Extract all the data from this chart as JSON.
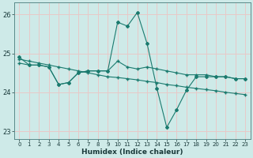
{
  "title": "",
  "xlabel": "Humidex (Indice chaleur)",
  "ylabel": "",
  "bg_color": "#ceeae8",
  "grid_color": "#e8c8c8",
  "line_color": "#1a7a6e",
  "xlim": [
    -0.5,
    23.5
  ],
  "ylim": [
    22.8,
    26.3
  ],
  "yticks": [
    23,
    24,
    25,
    26
  ],
  "xticks": [
    0,
    1,
    2,
    3,
    4,
    5,
    6,
    7,
    8,
    9,
    10,
    11,
    12,
    13,
    14,
    15,
    16,
    17,
    18,
    19,
    20,
    21,
    22,
    23
  ],
  "series1": [
    24.9,
    24.7,
    24.7,
    24.65,
    24.2,
    24.25,
    24.5,
    24.55,
    24.55,
    24.55,
    25.8,
    25.7,
    26.05,
    25.25,
    24.1,
    23.1,
    23.55,
    24.05,
    24.4,
    24.4,
    24.4,
    24.4,
    24.35,
    24.35
  ],
  "series2": [
    24.75,
    24.7,
    24.7,
    24.65,
    24.2,
    24.25,
    24.5,
    24.55,
    24.55,
    24.55,
    24.8,
    24.65,
    24.6,
    24.65,
    24.6,
    24.55,
    24.5,
    24.45,
    24.45,
    24.45,
    24.4,
    24.4,
    24.35,
    24.35
  ],
  "series3": [
    24.85,
    24.8,
    24.75,
    24.7,
    24.65,
    24.6,
    24.55,
    24.5,
    24.45,
    24.4,
    24.38,
    24.35,
    24.32,
    24.28,
    24.25,
    24.2,
    24.17,
    24.13,
    24.1,
    24.07,
    24.04,
    24.0,
    23.97,
    23.94
  ]
}
